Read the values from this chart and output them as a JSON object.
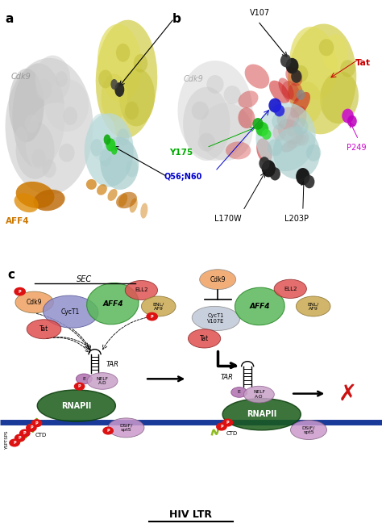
{
  "panel_a_label": "a",
  "panel_b_label": "b",
  "panel_c_label": "c",
  "colors": {
    "Cdk9": "#f0a060",
    "CycT1": "#9090cc",
    "CycT1_v": "#c0c8d8",
    "AFF4": "#5ab85a",
    "ELL2": "#e05555",
    "ENL_AF9": "#c8a850",
    "Tat_left": "#e06060",
    "Tat_right": "#e06060",
    "NELF_AD": "#c8a0c8",
    "NELF_E": "#b070b0",
    "RNAPII": "#1a5c1a",
    "DSIF": "#cc99cc",
    "DNA": "#1a3a9a",
    "red_dot": "#dd1111",
    "background": "#ffffff",
    "gray_cdk9": "#c8c8c8",
    "yellow_cyct1": "#d8d870",
    "light_blue": "#aed4d4",
    "orange_aff4": "#cc7700",
    "red_tat": "#cc3333",
    "black_dot": "#222222",
    "green_dot": "#22bb22",
    "blue_dot": "#1111cc",
    "magenta_dot": "#cc11cc"
  },
  "background_color": "#ffffff"
}
